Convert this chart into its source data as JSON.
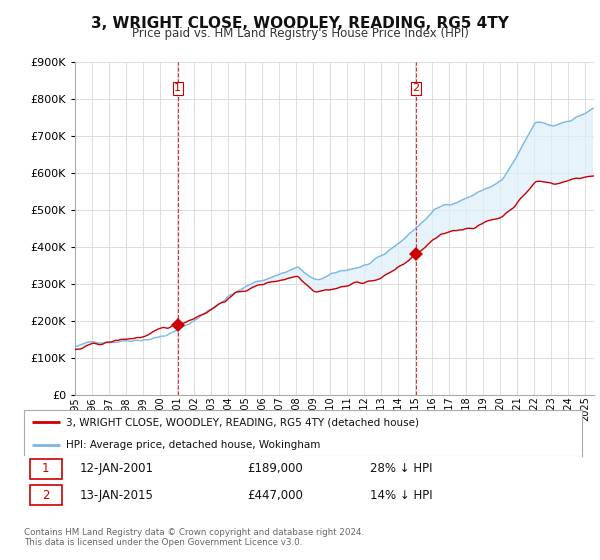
{
  "title": "3, WRIGHT CLOSE, WOODLEY, READING, RG5 4TY",
  "subtitle": "Price paid vs. HM Land Registry's House Price Index (HPI)",
  "hpi_label": "HPI: Average price, detached house, Wokingham",
  "price_label": "3, WRIGHT CLOSE, WOODLEY, READING, RG5 4TY (detached house)",
  "sale1_date": "12-JAN-2001",
  "sale1_price": "£189,000",
  "sale1_note": "28% ↓ HPI",
  "sale2_date": "13-JAN-2015",
  "sale2_price": "£447,000",
  "sale2_note": "14% ↓ HPI",
  "footer": "Contains HM Land Registry data © Crown copyright and database right 2024.\nThis data is licensed under the Open Government Licence v3.0.",
  "hpi_color": "#7ab8e8",
  "hpi_fill_color": "#ddeef8",
  "price_color": "#cc0000",
  "sale1_x": 2001.04,
  "sale1_y": 189000,
  "sale2_x": 2015.04,
  "sale2_y": 447000,
  "ylim": [
    0,
    900000
  ],
  "xlim": [
    1995.0,
    2025.5
  ],
  "background_color": "#ffffff",
  "grid_color": "#dddddd",
  "vline_color": "#cc0000"
}
